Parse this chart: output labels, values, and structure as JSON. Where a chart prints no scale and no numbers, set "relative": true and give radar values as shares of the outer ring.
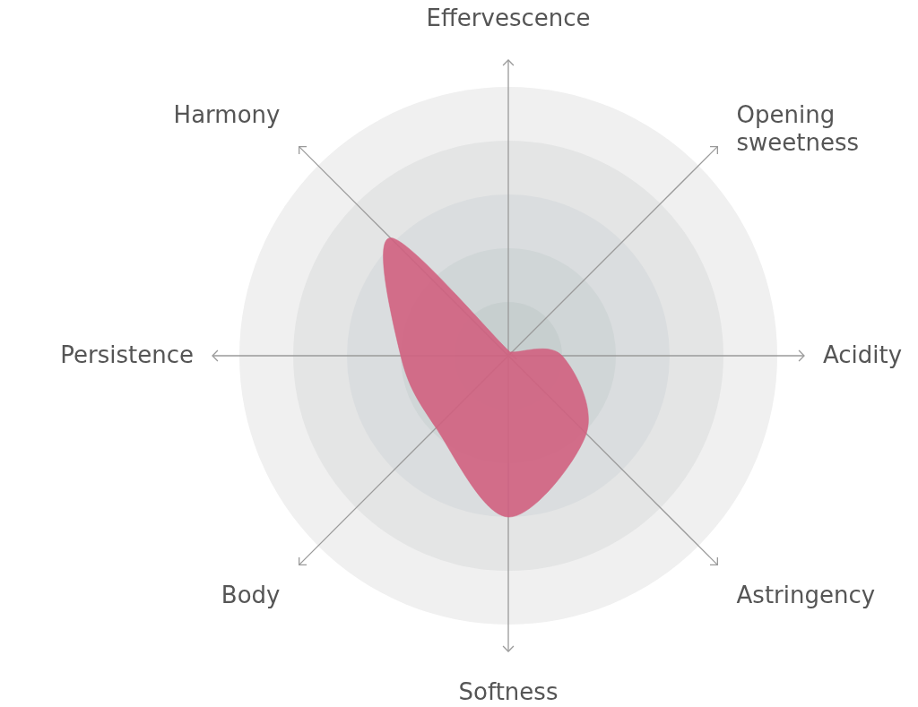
{
  "chart_data": {
    "type": "radar",
    "relative": true,
    "categories": [
      "Effervescence",
      "Opening sweetness",
      "Acidity",
      "Astringency",
      "Softness",
      "Body",
      "Persistence",
      "Harmony"
    ],
    "series": [
      {
        "color": "#d0607f",
        "values": [
          0.02,
          0.02,
          0.2,
          0.41,
          0.6,
          0.38,
          0.4,
          0.62
        ]
      }
    ]
  }
}
